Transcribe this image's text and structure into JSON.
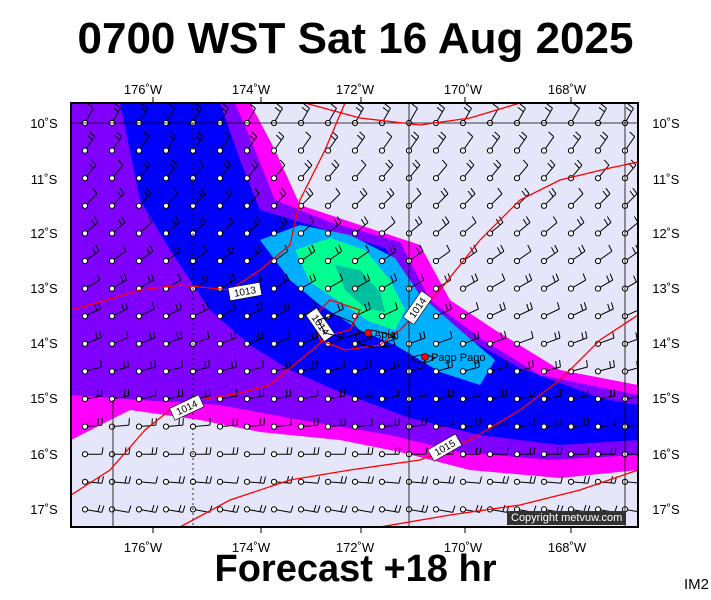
{
  "header": {
    "title": "0700 WST Sat 16 Aug 2025",
    "subtitle": "Forecast +18 hr",
    "code": "IM2",
    "copyright": "Copyright metvuw.com"
  },
  "map": {
    "lon_labels": [
      "176˚W",
      "174˚W",
      "172˚W",
      "170˚W",
      "168˚W"
    ],
    "lat_labels": [
      "10˚S",
      "11˚S",
      "12˚S",
      "13˚S",
      "14˚S",
      "15˚S",
      "16˚S",
      "17˚S"
    ],
    "towns": [
      {
        "name": "Apia"
      },
      {
        "name": "Pago Pago"
      }
    ],
    "isobars": [
      {
        "label": "1013"
      },
      {
        "label": "1014"
      },
      {
        "label": "1014"
      },
      {
        "label": "1014"
      },
      {
        "label": "1015"
      }
    ]
  },
  "colors": {
    "background_fill": "#e6e6fa",
    "precip_light": "#ff00ff",
    "precip_moderate": "#8000ff",
    "precip_heavy": "#0000ff",
    "precip_very_heavy": "#00b0ff",
    "precip_extreme": "#00ff90",
    "isobar": "#ff0000",
    "town_marker": "#ff0000"
  }
}
